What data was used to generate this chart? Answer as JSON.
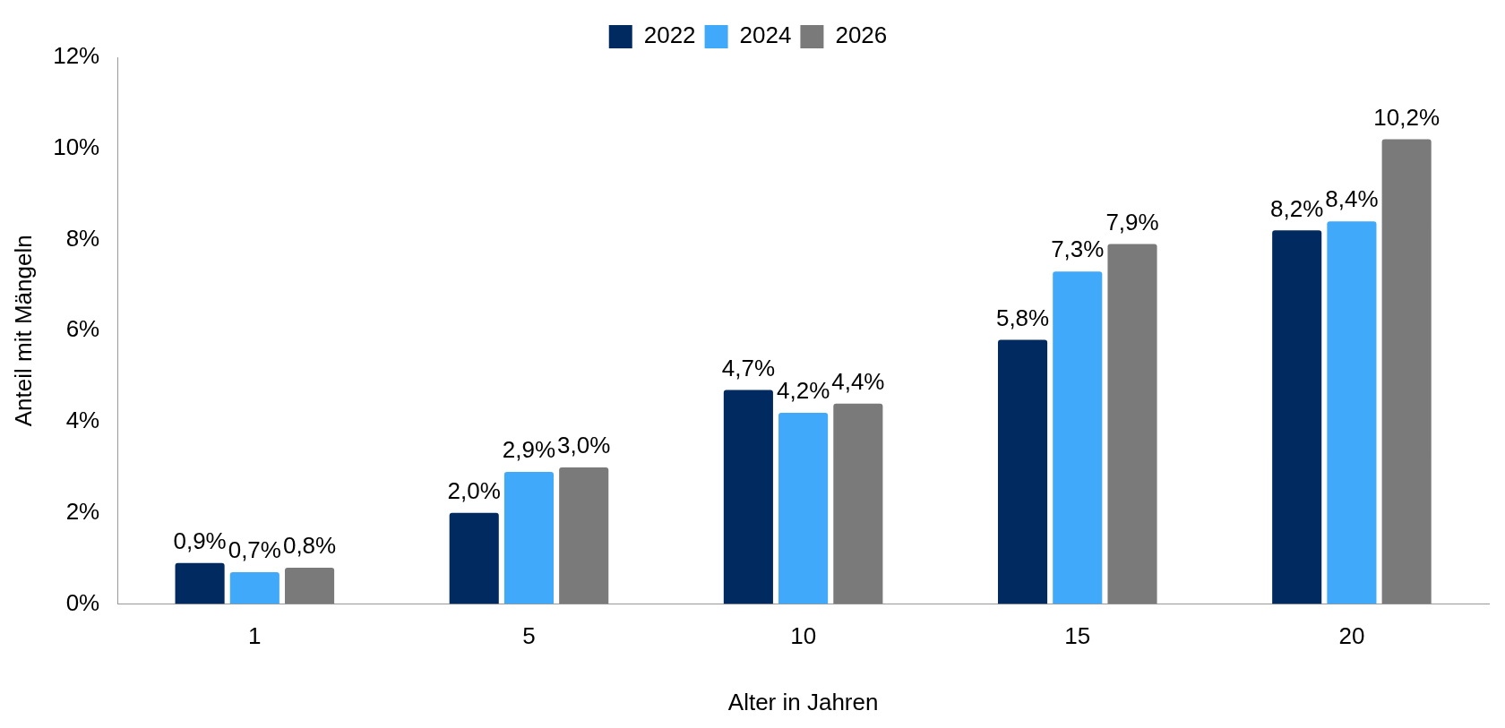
{
  "chart_data": {
    "type": "bar",
    "xlabel": "Alter in Jahren",
    "ylabel": "Anteil mit Mängeln",
    "categories": [
      "1",
      "5",
      "10",
      "15",
      "20"
    ],
    "series": [
      {
        "name": "2022",
        "color": "#002a60",
        "values": [
          0.9,
          2.0,
          4.7,
          5.8,
          8.2
        ],
        "value_labels": [
          "0,9%",
          "2,0%",
          "4,7%",
          "5,8%",
          "8,2%"
        ]
      },
      {
        "name": "2024",
        "color": "#40a9fa",
        "values": [
          0.7,
          2.9,
          4.2,
          7.3,
          8.4
        ],
        "value_labels": [
          "0,7%",
          "2,9%",
          "4,2%",
          "7,3%",
          "8,4%"
        ]
      },
      {
        "name": "2026",
        "color": "#7a7a7a",
        "values": [
          0.8,
          3.0,
          4.4,
          7.9,
          10.2
        ],
        "value_labels": [
          "0,8%",
          "3,0%",
          "4,4%",
          "7,9%",
          "10,2%"
        ]
      }
    ],
    "ylim": [
      0,
      12
    ],
    "yticks": [
      {
        "value": 0,
        "label": "0%"
      },
      {
        "value": 2,
        "label": "2%"
      },
      {
        "value": 4,
        "label": "4%"
      },
      {
        "value": 6,
        "label": "6%"
      },
      {
        "value": 8,
        "label": "8%"
      },
      {
        "value": 10,
        "label": "10%"
      },
      {
        "value": 12,
        "label": "12%"
      }
    ],
    "grid": false,
    "legend": "top"
  }
}
